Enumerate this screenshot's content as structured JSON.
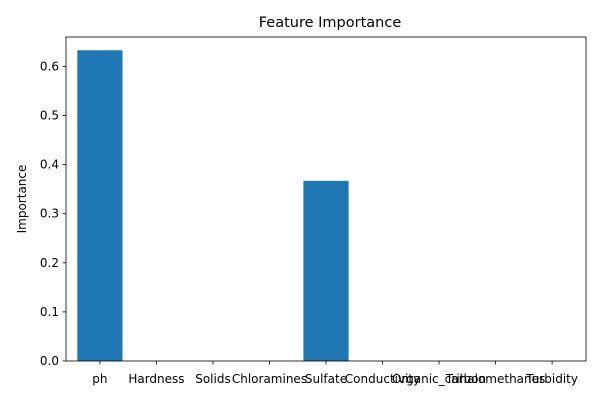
{
  "chart_data": {
    "type": "bar",
    "title": "Feature Importance",
    "xlabel": "",
    "ylabel": "Importance",
    "categories": [
      "ph",
      "Hardness",
      "Solids",
      "Chloramines",
      "Sulfate",
      "Conductivity",
      "Organic_carbon",
      "Trihalomethanes",
      "Turbidity"
    ],
    "values": [
      0.633,
      0,
      0,
      0,
      0.367,
      0,
      0,
      0,
      0
    ],
    "ylim": [
      0,
      0.66
    ],
    "yticks": [
      0.0,
      0.1,
      0.2,
      0.3,
      0.4,
      0.5,
      0.6
    ],
    "ytick_labels": [
      "0.0",
      "0.1",
      "0.2",
      "0.3",
      "0.4",
      "0.5",
      "0.6"
    ],
    "grid": false,
    "legend": "none",
    "bar_color": "#1f77b4"
  }
}
